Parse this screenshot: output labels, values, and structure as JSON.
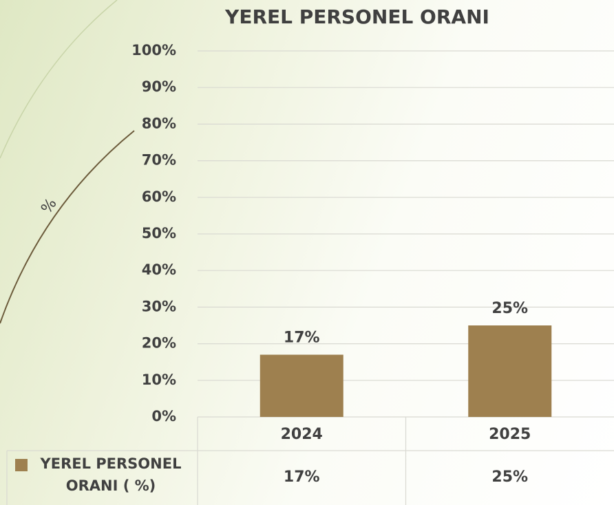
{
  "chart_data": {
    "type": "bar",
    "title": "YEREL PERSONEL ORANI",
    "ylabel": "%",
    "categories": [
      "2024",
      "2025"
    ],
    "series": [
      {
        "name": "YEREL PERSONEL ORANI ( %)",
        "color": "#9e804f",
        "values": [
          17,
          25
        ],
        "value_labels": [
          "17%",
          "25%"
        ]
      }
    ],
    "ylim": [
      0,
      100
    ],
    "yticks": [
      {
        "value": 0,
        "label": "0%"
      },
      {
        "value": 10,
        "label": "10%"
      },
      {
        "value": 20,
        "label": "20%"
      },
      {
        "value": 30,
        "label": "30%"
      },
      {
        "value": 40,
        "label": "40%"
      },
      {
        "value": 50,
        "label": "50%"
      },
      {
        "value": 60,
        "label": "60%"
      },
      {
        "value": 70,
        "label": "70%"
      },
      {
        "value": 80,
        "label": "80%"
      },
      {
        "value": 90,
        "label": "90%"
      },
      {
        "value": 100,
        "label": "100%"
      }
    ],
    "grid": true
  }
}
